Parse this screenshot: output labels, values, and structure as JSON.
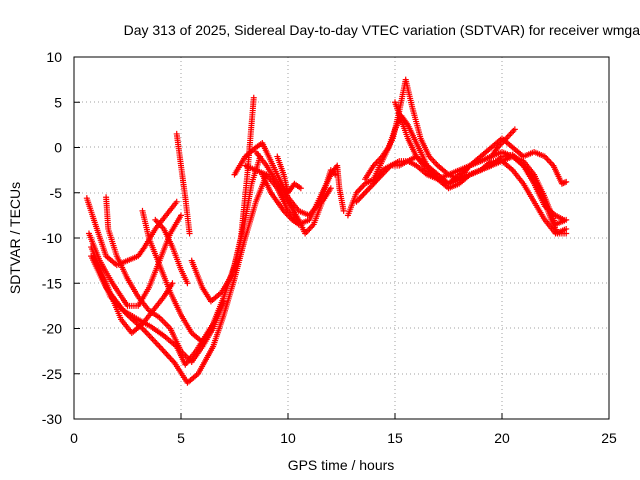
{
  "chart_data": {
    "type": "scatter",
    "title": "Day 313 of 2025, Sidereal Day-to-day VTEC variation (SDTVAR) for receiver wmga",
    "xlabel": "GPS time / hours",
    "ylabel": "SDTVAR / TECUs",
    "xlim": [
      0,
      25
    ],
    "ylim": [
      -30,
      10
    ],
    "xticks": [
      0,
      5,
      10,
      15,
      20,
      25
    ],
    "yticks": [
      -30,
      -25,
      -20,
      -15,
      -10,
      -5,
      0,
      5,
      10
    ],
    "grid": true,
    "marker": "plus",
    "color": "#ff0000",
    "traces": [
      [
        [
          0.6,
          -5.6
        ],
        [
          1.0,
          -8.5
        ],
        [
          1.5,
          -12.0
        ],
        [
          2.0,
          -13.0
        ],
        [
          2.5,
          -12.5
        ],
        [
          3.0,
          -12.0
        ],
        [
          3.3,
          -11.0
        ],
        [
          3.8,
          -9.0
        ],
        [
          4.3,
          -7.5
        ],
        [
          4.8,
          -6.0
        ]
      ],
      [
        [
          0.7,
          -9.5
        ],
        [
          1.2,
          -12.5
        ],
        [
          1.8,
          -15.0
        ],
        [
          2.5,
          -17.5
        ],
        [
          3.0,
          -17.5
        ],
        [
          3.5,
          -15.5
        ],
        [
          4.0,
          -12.5
        ],
        [
          4.5,
          -9.5
        ],
        [
          5.0,
          -7.5
        ]
      ],
      [
        [
          0.8,
          -11.0
        ],
        [
          1.5,
          -15.0
        ],
        [
          2.2,
          -19.0
        ],
        [
          2.7,
          -20.5
        ],
        [
          3.2,
          -19.5
        ],
        [
          3.7,
          -18.0
        ],
        [
          4.2,
          -16.5
        ],
        [
          4.6,
          -15.0
        ]
      ],
      [
        [
          0.8,
          -12.0
        ],
        [
          1.5,
          -15.5
        ],
        [
          2.3,
          -18.0
        ],
        [
          3.0,
          -19.0
        ],
        [
          3.6,
          -19.8
        ],
        [
          4.2,
          -20.8
        ],
        [
          4.8,
          -22.0
        ],
        [
          5.2,
          -24.0
        ],
        [
          5.7,
          -22.5
        ],
        [
          6.5,
          -19.5
        ],
        [
          7.0,
          -16.5
        ],
        [
          7.5,
          -13.0
        ],
        [
          8.0,
          -8.0
        ],
        [
          8.3,
          -4.0
        ],
        [
          8.7,
          -1.0
        ]
      ],
      [
        [
          1.0,
          -12.5
        ],
        [
          1.7,
          -16.5
        ],
        [
          2.5,
          -18.5
        ],
        [
          3.2,
          -20.0
        ],
        [
          4.0,
          -22.0
        ],
        [
          4.7,
          -23.8
        ],
        [
          5.3,
          -26.0
        ],
        [
          5.8,
          -25.0
        ],
        [
          6.5,
          -22.0
        ],
        [
          7.0,
          -18.5
        ],
        [
          7.5,
          -14.5
        ],
        [
          8.0,
          -10.0
        ],
        [
          8.5,
          -6.0
        ],
        [
          9.0,
          -3.0
        ]
      ],
      [
        [
          1.5,
          -5.5
        ],
        [
          1.6,
          -9.0
        ],
        [
          2.0,
          -12.0
        ],
        [
          2.5,
          -14.5
        ],
        [
          3.0,
          -16.5
        ],
        [
          3.5,
          -18.0
        ],
        [
          4.0,
          -18.8
        ],
        [
          4.5,
          -20.0
        ],
        [
          5.0,
          -22.5
        ],
        [
          5.5,
          -23.7
        ],
        [
          6.0,
          -22.0
        ],
        [
          6.5,
          -20.0
        ],
        [
          7.0,
          -17.0
        ]
      ],
      [
        [
          3.2,
          -7.0
        ],
        [
          3.5,
          -10.0
        ],
        [
          4.0,
          -13.0
        ],
        [
          4.5,
          -16.0
        ],
        [
          5.0,
          -18.5
        ],
        [
          5.5,
          -20.5
        ],
        [
          6.0,
          -21.5
        ],
        [
          6.5,
          -19.5
        ],
        [
          7.0,
          -17.0
        ]
      ],
      [
        [
          3.8,
          -8.0
        ],
        [
          4.2,
          -9.0
        ],
        [
          4.6,
          -11.0
        ],
        [
          5.0,
          -13.5
        ],
        [
          5.3,
          -15.0
        ]
      ],
      [
        [
          4.8,
          1.5
        ],
        [
          5.0,
          -2.0
        ],
        [
          5.2,
          -5.5
        ],
        [
          5.4,
          -9.5
        ]
      ],
      [
        [
          5.5,
          -12.5
        ],
        [
          6.0,
          -15.5
        ],
        [
          6.4,
          -17.0
        ],
        [
          6.9,
          -16.0
        ],
        [
          7.4,
          -14.0
        ],
        [
          7.8,
          -10.0
        ],
        [
          8.1,
          -3.0
        ],
        [
          8.4,
          5.5
        ]
      ],
      [
        [
          7.5,
          -3.0
        ],
        [
          8.0,
          -1.0
        ],
        [
          8.5,
          0.0
        ],
        [
          8.8,
          0.5
        ],
        [
          9.0,
          -0.5
        ],
        [
          9.3,
          -2.0
        ],
        [
          9.6,
          -3.5
        ],
        [
          10.0,
          -5.5
        ],
        [
          10.5,
          -7.0
        ],
        [
          11.0,
          -7.5
        ],
        [
          11.5,
          -6.0
        ],
        [
          11.8,
          -4.0
        ],
        [
          12.0,
          -2.5
        ],
        [
          12.2,
          -3.0
        ]
      ],
      [
        [
          8.0,
          -2.0
        ],
        [
          8.5,
          -2.5
        ],
        [
          9.0,
          -3.0
        ],
        [
          9.5,
          -4.5
        ],
        [
          10.0,
          -7.0
        ],
        [
          10.5,
          -8.5
        ],
        [
          11.0,
          -8.0
        ],
        [
          11.3,
          -6.5
        ],
        [
          11.6,
          -5.0
        ],
        [
          12.0,
          -3.0
        ],
        [
          12.3,
          -2.0
        ],
        [
          12.4,
          -4.5
        ],
        [
          12.6,
          -7.0
        ]
      ],
      [
        [
          8.5,
          -0.5
        ],
        [
          9.0,
          -2.0
        ],
        [
          9.5,
          -4.0
        ],
        [
          10.0,
          -6.0
        ],
        [
          10.5,
          -8.0
        ],
        [
          10.8,
          -9.5
        ],
        [
          11.2,
          -8.5
        ],
        [
          11.6,
          -6.0
        ],
        [
          12.0,
          -4.5
        ]
      ],
      [
        [
          8.8,
          -3.0
        ],
        [
          9.2,
          -5.0
        ],
        [
          9.8,
          -7.0
        ],
        [
          10.2,
          -8.0
        ],
        [
          10.5,
          -8.5
        ]
      ],
      [
        [
          9.5,
          -1.0
        ],
        [
          9.8,
          -3.0
        ],
        [
          10.0,
          -5.0
        ],
        [
          10.3,
          -4.0
        ],
        [
          10.6,
          -4.5
        ]
      ],
      [
        [
          12.8,
          -7.5
        ],
        [
          13.2,
          -5.0
        ],
        [
          13.6,
          -4.0
        ],
        [
          14.0,
          -3.5
        ],
        [
          14.3,
          -2.0
        ],
        [
          14.6,
          -0.5
        ],
        [
          14.9,
          1.0
        ],
        [
          15.2,
          4.0
        ],
        [
          15.5,
          7.5
        ],
        [
          15.8,
          4.5
        ],
        [
          16.2,
          1.0
        ],
        [
          16.6,
          -1.0
        ],
        [
          17.0,
          -2.0
        ],
        [
          17.5,
          -3.0
        ],
        [
          18.0,
          -3.5
        ],
        [
          18.5,
          -3.0
        ],
        [
          19.0,
          -2.5
        ],
        [
          19.5,
          -2.0
        ],
        [
          20.0,
          -1.0
        ],
        [
          20.5,
          -0.8
        ],
        [
          21.0,
          -2.0
        ],
        [
          21.5,
          -3.5
        ],
        [
          22.0,
          -6.0
        ],
        [
          22.3,
          -8.0
        ],
        [
          22.6,
          -9.5
        ],
        [
          23.0,
          -9.5
        ]
      ],
      [
        [
          13.2,
          -6.0
        ],
        [
          13.6,
          -5.0
        ],
        [
          14.0,
          -4.0
        ],
        [
          14.4,
          -2.5
        ],
        [
          14.8,
          -2.0
        ],
        [
          15.2,
          -2.0
        ],
        [
          15.6,
          -1.5
        ],
        [
          16.0,
          -1.0
        ],
        [
          16.5,
          -2.0
        ],
        [
          17.0,
          -3.0
        ],
        [
          17.5,
          -4.0
        ],
        [
          18.0,
          -3.5
        ],
        [
          18.5,
          -3.0
        ],
        [
          19.0,
          -2.5
        ],
        [
          19.5,
          -2.0
        ],
        [
          20.0,
          -1.5
        ],
        [
          20.5,
          -1.0
        ],
        [
          21.0,
          -1.5
        ],
        [
          21.5,
          -3.0
        ],
        [
          22.0,
          -5.5
        ],
        [
          22.5,
          -8.5
        ],
        [
          23.0,
          -8.0
        ]
      ],
      [
        [
          13.6,
          -3.5
        ],
        [
          14.0,
          -2.0
        ],
        [
          14.4,
          -1.0
        ],
        [
          14.7,
          0.0
        ],
        [
          15.0,
          2.0
        ],
        [
          15.3,
          3.5
        ],
        [
          15.6,
          2.5
        ],
        [
          16.0,
          0.5
        ],
        [
          16.5,
          -2.0
        ],
        [
          17.0,
          -3.5
        ],
        [
          17.5,
          -4.5
        ],
        [
          18.0,
          -4.0
        ],
        [
          18.5,
          -3.0
        ],
        [
          19.0,
          -2.5
        ],
        [
          19.5,
          -1.5
        ],
        [
          20.0,
          -1.5
        ],
        [
          20.5,
          -2.5
        ],
        [
          21.0,
          -4.0
        ],
        [
          21.5,
          -6.0
        ],
        [
          22.0,
          -8.0
        ],
        [
          22.5,
          -9.5
        ],
        [
          23.0,
          -9.0
        ]
      ],
      [
        [
          14.0,
          -4.0
        ],
        [
          14.4,
          -3.0
        ],
        [
          14.8,
          -2.0
        ],
        [
          15.2,
          -1.5
        ],
        [
          15.6,
          -1.5
        ],
        [
          16.0,
          -2.0
        ],
        [
          16.5,
          -3.0
        ],
        [
          17.0,
          -3.5
        ],
        [
          17.5,
          -4.0
        ],
        [
          18.0,
          -3.5
        ],
        [
          18.5,
          -2.0
        ],
        [
          19.0,
          -1.5
        ],
        [
          19.5,
          -1.0
        ],
        [
          20.0,
          -0.5
        ],
        [
          20.5,
          -1.0
        ],
        [
          21.0,
          -2.0
        ],
        [
          21.5,
          -4.0
        ],
        [
          22.0,
          -6.5
        ],
        [
          22.5,
          -7.5
        ],
        [
          22.9,
          -8.0
        ]
      ],
      [
        [
          15.0,
          5.0
        ],
        [
          15.3,
          3.0
        ],
        [
          15.6,
          1.0
        ],
        [
          16.0,
          -1.0
        ],
        [
          16.5,
          -2.5
        ],
        [
          17.0,
          -3.5
        ],
        [
          17.5,
          -3.0
        ],
        [
          18.0,
          -2.5
        ],
        [
          18.5,
          -2.0
        ],
        [
          19.0,
          -1.5
        ],
        [
          19.5,
          -1.0
        ],
        [
          19.8,
          0.0
        ],
        [
          20.2,
          1.0
        ],
        [
          20.6,
          2.0
        ]
      ],
      [
        [
          17.5,
          -4.0
        ],
        [
          18.0,
          -3.0
        ],
        [
          18.5,
          -2.0
        ],
        [
          19.0,
          -1.0
        ],
        [
          19.5,
          0.0
        ],
        [
          20.0,
          1.0
        ],
        [
          20.5,
          0.0
        ],
        [
          21.0,
          -1.0
        ],
        [
          21.5,
          -0.5
        ],
        [
          22.0,
          -1.0
        ],
        [
          22.4,
          -2.0
        ],
        [
          22.8,
          -4.0
        ],
        [
          23.0,
          -3.8
        ]
      ]
    ]
  }
}
